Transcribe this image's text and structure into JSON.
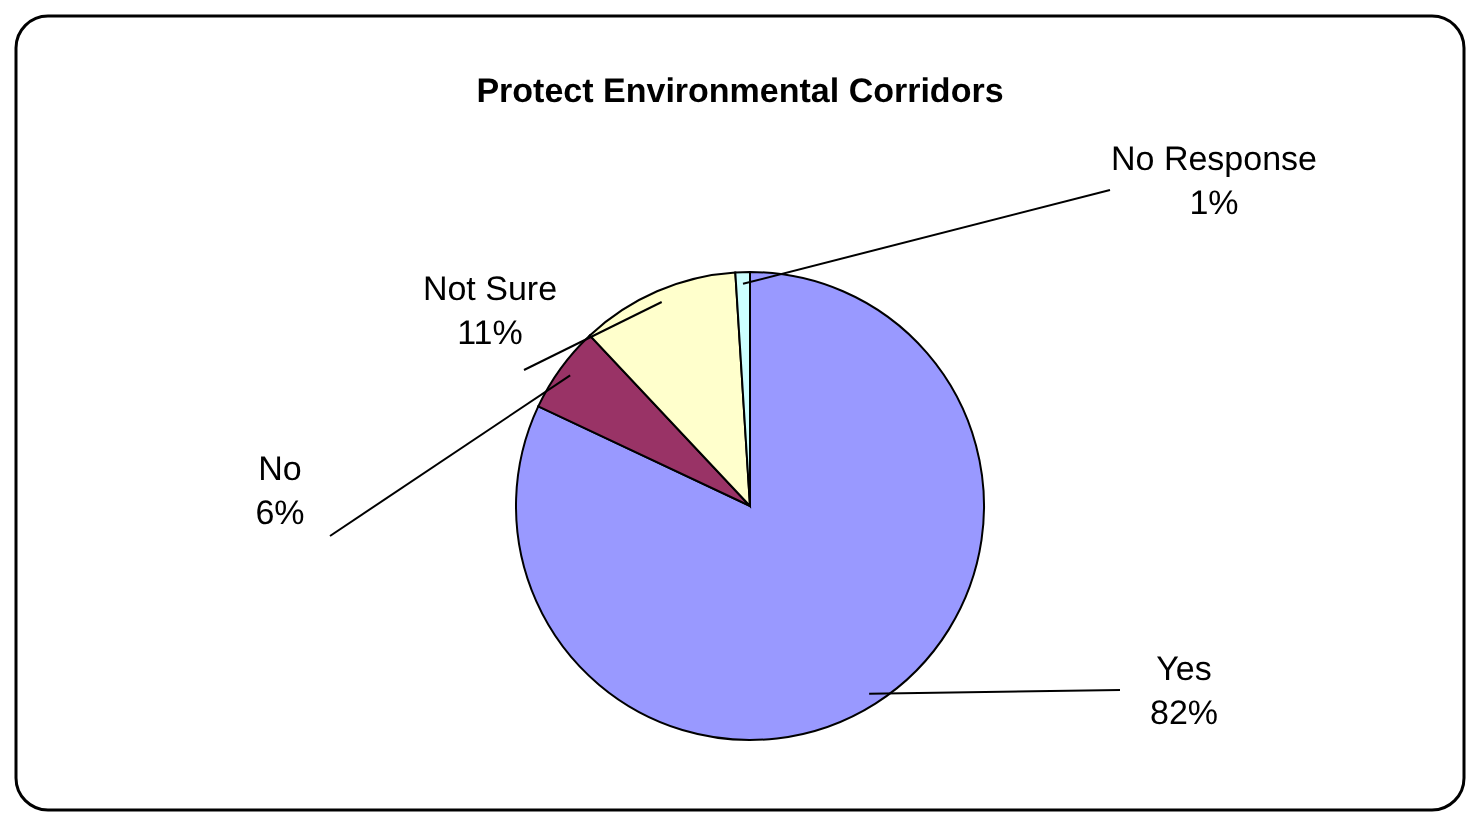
{
  "chart_data": {
    "type": "pie",
    "title": "Protect Environmental Corridors",
    "categories": [
      "Yes",
      "No",
      "Not Sure",
      "No Response"
    ],
    "values": [
      82,
      6,
      11,
      1
    ],
    "colors": [
      "#9999ff",
      "#993366",
      "#ffffcc",
      "#ccffff"
    ],
    "value_labels": [
      "82%",
      "6%",
      "11%",
      "1%"
    ]
  }
}
